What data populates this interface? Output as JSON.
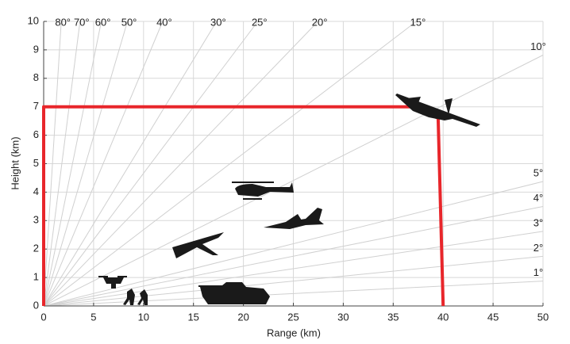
{
  "chart_data": {
    "type": "line",
    "xlabel": "Range (km)",
    "ylabel": "Height (km)",
    "x": [
      0,
      0,
      37,
      39.5,
      40
    ],
    "series": [
      {
        "color": "#e8262b",
        "values": [
          0,
          7,
          7,
          6.6,
          0
        ]
      }
    ],
    "xlim": [
      0,
      50
    ],
    "ylim": [
      0,
      10
    ],
    "xticks": [
      0,
      5,
      10,
      15,
      20,
      25,
      30,
      35,
      40,
      45,
      50
    ],
    "yticks": [
      0,
      1,
      2,
      3,
      4,
      5,
      6,
      7,
      8,
      9,
      10
    ],
    "grid": true,
    "elevation_angles": [
      {
        "value": 80,
        "label": "80°"
      },
      {
        "value": 70,
        "label": "70°"
      },
      {
        "value": 60,
        "label": "60°"
      },
      {
        "value": 50,
        "label": "50°"
      },
      {
        "value": 40,
        "label": "40°"
      },
      {
        "value": 30,
        "label": "30°"
      },
      {
        "value": 25,
        "label": "25°"
      },
      {
        "value": 20,
        "label": "20°"
      },
      {
        "value": 15,
        "label": "15°"
      },
      {
        "value": 10,
        "label": "10°"
      },
      {
        "value": 5,
        "label": "5°"
      },
      {
        "value": 4,
        "label": "4°"
      },
      {
        "value": 3,
        "label": "3°"
      },
      {
        "value": 2,
        "label": "2°"
      },
      {
        "value": 1,
        "label": "1°"
      }
    ]
  }
}
